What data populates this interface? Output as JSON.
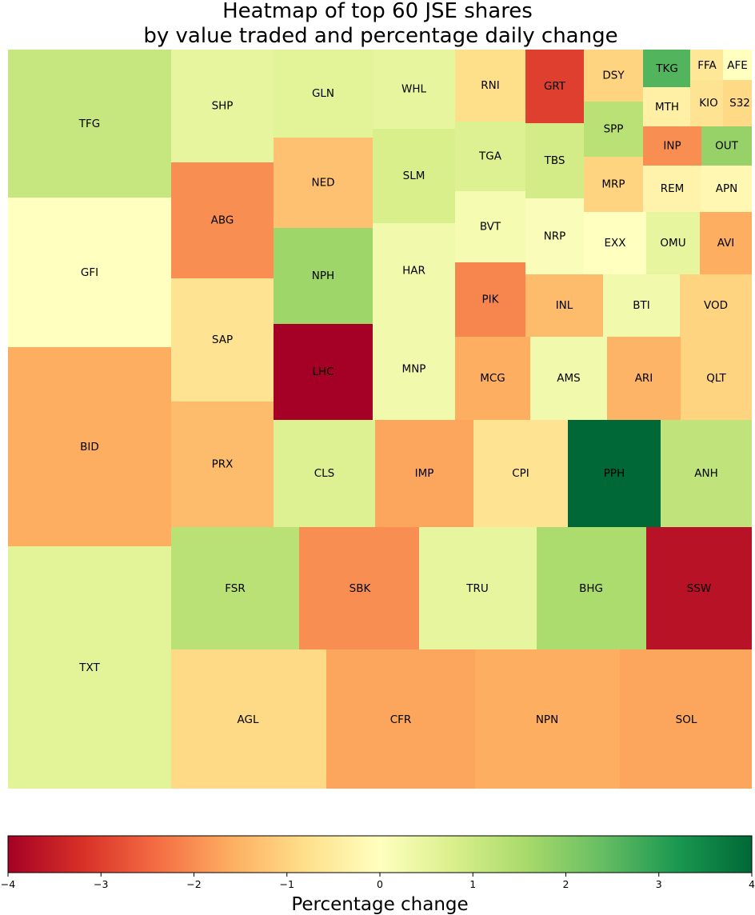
{
  "chart_data": {
    "type": "heatmap",
    "subtype": "treemap",
    "title_lines": [
      "Heatmap of top 60 JSE shares",
      "by value traded and percentage daily change"
    ],
    "colorbar": {
      "label": "Percentage change",
      "range": [
        -4,
        4
      ],
      "ticks": [
        -4,
        -3,
        -2,
        -1,
        0,
        1,
        2,
        3,
        4
      ],
      "tick_labels": [
        "−4",
        "−3",
        "−2",
        "−1",
        "0",
        "1",
        "2",
        "3",
        "4"
      ],
      "colormap": "RdYlGn",
      "colors": [
        "#a50026",
        "#d73027",
        "#f46d43",
        "#fdae61",
        "#fee08b",
        "#ffffbf",
        "#d9ef8b",
        "#a6d96a",
        "#66bd63",
        "#1a9850",
        "#006837"
      ]
    },
    "tiles": [
      {
        "ticker": "TFG",
        "change": 1.1
      },
      {
        "ticker": "GFI",
        "change": 0.0
      },
      {
        "ticker": "BID",
        "change": -1.6
      },
      {
        "ticker": "TXT",
        "change": 0.6
      },
      {
        "ticker": "SHP",
        "change": 0.5
      },
      {
        "ticker": "ABG",
        "change": -2.0
      },
      {
        "ticker": "SAP",
        "change": -0.7
      },
      {
        "ticker": "PRX",
        "change": -1.4
      },
      {
        "ticker": "GLN",
        "change": 0.6
      },
      {
        "ticker": "NED",
        "change": -1.3
      },
      {
        "ticker": "NPH",
        "change": 1.7
      },
      {
        "ticker": "LHC",
        "change": -4.0
      },
      {
        "ticker": "WHL",
        "change": 0.5
      },
      {
        "ticker": "SLM",
        "change": 0.8
      },
      {
        "ticker": "HAR",
        "change": 0.3
      },
      {
        "ticker": "MNP",
        "change": 0.3
      },
      {
        "ticker": "RNI",
        "change": -0.8
      },
      {
        "ticker": "GRT",
        "change": -3.0
      },
      {
        "ticker": "TGA",
        "change": 0.7
      },
      {
        "ticker": "TBS",
        "change": 0.9
      },
      {
        "ticker": "BVT",
        "change": 0.2
      },
      {
        "ticker": "NRP",
        "change": 0.1
      },
      {
        "ticker": "DSY",
        "change": -1.0
      },
      {
        "ticker": "TKG",
        "change": 2.6
      },
      {
        "ticker": "FFA",
        "change": -0.6
      },
      {
        "ticker": "AFE",
        "change": 0.0
      },
      {
        "ticker": "MTH",
        "change": -0.4
      },
      {
        "ticker": "KIO",
        "change": -0.7
      },
      {
        "ticker": "S32",
        "change": -0.9
      },
      {
        "ticker": "SPP",
        "change": 1.3
      },
      {
        "ticker": "INP",
        "change": -2.0
      },
      {
        "ticker": "OUT",
        "change": 1.8
      },
      {
        "ticker": "MRP",
        "change": -1.0
      },
      {
        "ticker": "REM",
        "change": -0.3
      },
      {
        "ticker": "APN",
        "change": -0.2
      },
      {
        "ticker": "EXX",
        "change": 0.0
      },
      {
        "ticker": "OMU",
        "change": 0.5
      },
      {
        "ticker": "AVI",
        "change": -1.6
      },
      {
        "ticker": "PIK",
        "change": -2.1
      },
      {
        "ticker": "INL",
        "change": -1.4
      },
      {
        "ticker": "BTI",
        "change": 0.3
      },
      {
        "ticker": "VOD",
        "change": -1.0
      },
      {
        "ticker": "MCG",
        "change": -1.6
      },
      {
        "ticker": "AMS",
        "change": 0.3
      },
      {
        "ticker": "ARI",
        "change": -1.5
      },
      {
        "ticker": "QLT",
        "change": -1.0
      },
      {
        "ticker": "CLS",
        "change": 0.7
      },
      {
        "ticker": "IMP",
        "change": -1.7
      },
      {
        "ticker": "CPI",
        "change": -0.7
      },
      {
        "ticker": "PPH",
        "change": 4.0
      },
      {
        "ticker": "ANH",
        "change": 1.2
      },
      {
        "ticker": "FSR",
        "change": 1.3
      },
      {
        "ticker": "SBK",
        "change": -2.0
      },
      {
        "ticker": "TRU",
        "change": 0.5
      },
      {
        "ticker": "BHG",
        "change": 1.5
      },
      {
        "ticker": "SSW",
        "change": -3.7
      },
      {
        "ticker": "AGL",
        "change": -0.9
      },
      {
        "ticker": "CFR",
        "change": -1.7
      },
      {
        "ticker": "NPN",
        "change": -1.6
      },
      {
        "ticker": "SOL",
        "change": -1.7
      }
    ]
  }
}
